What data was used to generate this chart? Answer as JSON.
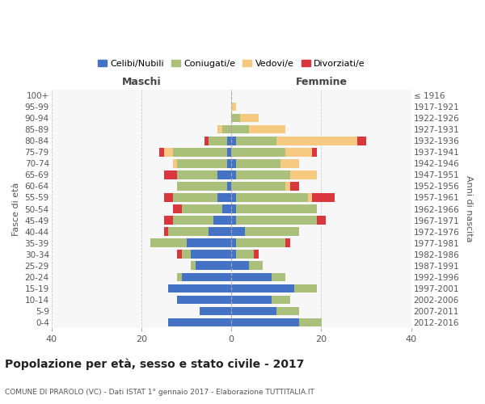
{
  "age_groups": [
    "0-4",
    "5-9",
    "10-14",
    "15-19",
    "20-24",
    "25-29",
    "30-34",
    "35-39",
    "40-44",
    "45-49",
    "50-54",
    "55-59",
    "60-64",
    "65-69",
    "70-74",
    "75-79",
    "80-84",
    "85-89",
    "90-94",
    "95-99",
    "100+"
  ],
  "birth_years": [
    "2012-2016",
    "2007-2011",
    "2002-2006",
    "1997-2001",
    "1992-1996",
    "1987-1991",
    "1982-1986",
    "1977-1981",
    "1972-1976",
    "1967-1971",
    "1962-1966",
    "1957-1961",
    "1952-1956",
    "1947-1951",
    "1942-1946",
    "1937-1941",
    "1932-1936",
    "1927-1931",
    "1922-1926",
    "1917-1921",
    "≤ 1916"
  ],
  "males": {
    "celibi": [
      14,
      7,
      12,
      14,
      11,
      8,
      9,
      10,
      5,
      4,
      2,
      3,
      1,
      3,
      1,
      1,
      1,
      0,
      0,
      0,
      0
    ],
    "coniugati": [
      0,
      0,
      0,
      0,
      1,
      1,
      2,
      8,
      9,
      9,
      9,
      10,
      11,
      9,
      11,
      12,
      4,
      2,
      0,
      0,
      0
    ],
    "vedovi": [
      0,
      0,
      0,
      0,
      0,
      0,
      0,
      0,
      0,
      0,
      0,
      0,
      0,
      0,
      1,
      2,
      0,
      1,
      0,
      0,
      0
    ],
    "divorziati": [
      0,
      0,
      0,
      0,
      0,
      0,
      1,
      0,
      1,
      2,
      2,
      2,
      0,
      3,
      0,
      1,
      1,
      0,
      0,
      0,
      0
    ]
  },
  "females": {
    "nubili": [
      15,
      10,
      9,
      14,
      9,
      4,
      1,
      1,
      3,
      1,
      1,
      1,
      0,
      1,
      1,
      0,
      1,
      0,
      0,
      0,
      0
    ],
    "coniugate": [
      5,
      5,
      4,
      5,
      3,
      3,
      4,
      11,
      12,
      18,
      18,
      16,
      12,
      12,
      10,
      12,
      9,
      4,
      2,
      0,
      0
    ],
    "vedove": [
      0,
      0,
      0,
      0,
      0,
      0,
      0,
      0,
      0,
      0,
      0,
      1,
      1,
      6,
      4,
      6,
      18,
      8,
      4,
      1,
      0
    ],
    "divorziate": [
      0,
      0,
      0,
      0,
      0,
      0,
      1,
      1,
      0,
      2,
      0,
      5,
      2,
      0,
      0,
      1,
      2,
      0,
      0,
      0,
      0
    ]
  },
  "colors": {
    "celibi": "#4472C4",
    "coniugati": "#AABF7A",
    "vedovi": "#F5C97F",
    "divorziati": "#D9363E"
  },
  "xlim": 40,
  "title": "Popolazione per età, sesso e stato civile - 2017",
  "subtitle": "COMUNE DI PRAROLO (VC) - Dati ISTAT 1° gennaio 2017 - Elaborazione TUTTITALIA.IT",
  "ylabel_left": "Fasce di età",
  "ylabel_right": "Anni di nascita",
  "xlabel_maschi": "Maschi",
  "xlabel_femmine": "Femmine",
  "legend_labels": [
    "Celibi/Nubili",
    "Coniugati/e",
    "Vedovi/e",
    "Divorziati/e"
  ],
  "bg_color": "#FFFFFF",
  "plot_bg_color": "#F7F7F7",
  "grid_color": "#CCCCCC",
  "bar_height": 0.75
}
